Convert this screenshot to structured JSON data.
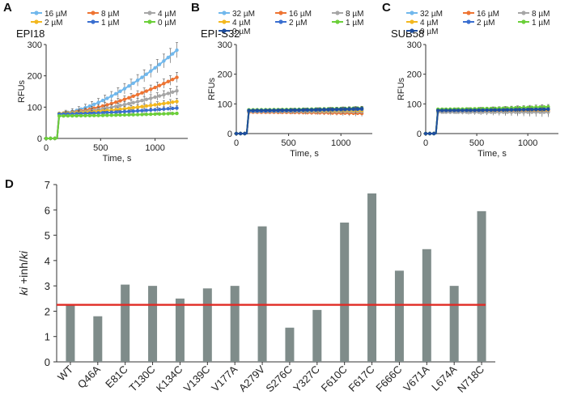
{
  "chart_data": [
    {
      "panel": "A",
      "type": "line",
      "title": "EPI18",
      "xlabel": "Time, s",
      "ylabel": "RFUs",
      "xlim": [
        0,
        1300
      ],
      "ylim": [
        0,
        300
      ],
      "xticks": [
        0,
        500,
        1000
      ],
      "yticks": [
        0,
        100,
        200,
        300
      ],
      "legend_position": "top",
      "series": [
        {
          "name": "16 µM",
          "color": "#71b8ec",
          "baseline": 80,
          "end": 282,
          "err": 24
        },
        {
          "name": "8 µM",
          "color": "#ee7433",
          "baseline": 80,
          "end": 195,
          "err": 16
        },
        {
          "name": "4 µM",
          "color": "#a6a6a6",
          "baseline": 80,
          "end": 152,
          "err": 14
        },
        {
          "name": "2 µM",
          "color": "#f3b81f",
          "baseline": 80,
          "end": 118,
          "err": 10
        },
        {
          "name": "1 µM",
          "color": "#3a6fd0",
          "baseline": 78,
          "end": 97,
          "err": 8
        },
        {
          "name": "0 µM",
          "color": "#6ccf3a",
          "baseline": 72,
          "end": 80,
          "err": 4
        }
      ]
    },
    {
      "panel": "B",
      "type": "line",
      "title": "EPI-S32",
      "xlabel": "Time, s",
      "ylabel": "RFUs",
      "xlim": [
        0,
        1300
      ],
      "ylim": [
        0,
        300
      ],
      "xticks": [
        0,
        500,
        1000
      ],
      "yticks": [
        0,
        100,
        200,
        300
      ],
      "legend_position": "top",
      "series": [
        {
          "name": "32 µM",
          "color": "#71b8ec",
          "baseline": 78,
          "end": 80,
          "err": 8
        },
        {
          "name": "16 µM",
          "color": "#ee7433",
          "baseline": 72,
          "end": 68,
          "err": 10
        },
        {
          "name": "8 µM",
          "color": "#a6a6a6",
          "baseline": 74,
          "end": 74,
          "err": 8
        },
        {
          "name": "4 µM",
          "color": "#f3b81f",
          "baseline": 76,
          "end": 78,
          "err": 6
        },
        {
          "name": "2 µM",
          "color": "#3a6fd0",
          "baseline": 76,
          "end": 82,
          "err": 6
        },
        {
          "name": "1 µM",
          "color": "#6ccf3a",
          "baseline": 80,
          "end": 86,
          "err": 6
        },
        {
          "name": "0 µM",
          "color": "#1f4e9e",
          "baseline": 78,
          "end": 84,
          "err": 6
        }
      ]
    },
    {
      "panel": "C",
      "type": "line",
      "title": "SUB58",
      "xlabel": "Time, s",
      "ylabel": "RFUs",
      "xlim": [
        0,
        1300
      ],
      "ylim": [
        0,
        300
      ],
      "xticks": [
        0,
        500,
        1000
      ],
      "yticks": [
        0,
        100,
        200,
        300
      ],
      "legend_position": "top",
      "series": [
        {
          "name": "32 µM",
          "color": "#71b8ec",
          "baseline": 80,
          "end": 84,
          "err": 10
        },
        {
          "name": "16 µM",
          "color": "#ee7433",
          "baseline": 74,
          "end": 76,
          "err": 14
        },
        {
          "name": "8 µM",
          "color": "#a6a6a6",
          "baseline": 72,
          "end": 72,
          "err": 16
        },
        {
          "name": "4 µM",
          "color": "#f3b81f",
          "baseline": 78,
          "end": 80,
          "err": 8
        },
        {
          "name": "2 µM",
          "color": "#3a6fd0",
          "baseline": 78,
          "end": 82,
          "err": 8
        },
        {
          "name": "1 µM",
          "color": "#6ccf3a",
          "baseline": 82,
          "end": 90,
          "err": 8
        },
        {
          "name": "0 µM",
          "color": "#1f4e9e",
          "baseline": 78,
          "end": 82,
          "err": 6
        }
      ]
    },
    {
      "panel": "D",
      "type": "bar",
      "ylabel_italic_1": "ki",
      "ylabel_mid": " +inh/",
      "ylabel_italic_2": "ki",
      "ylim": [
        0,
        7
      ],
      "yticks": [
        0,
        1,
        2,
        3,
        4,
        5,
        6,
        7
      ],
      "categories": [
        "WT",
        "Q46A",
        "E81C",
        "T130C",
        "K134C",
        "V139C",
        "V177A",
        "A279V",
        "S276C",
        "Y327C",
        "F610C",
        "F617C",
        "F666C",
        "V671A",
        "L674A",
        "N718C"
      ],
      "values": [
        2.25,
        1.8,
        3.05,
        3.0,
        2.5,
        2.9,
        3.0,
        5.35,
        1.35,
        2.05,
        5.5,
        6.65,
        3.6,
        4.45,
        3.0,
        5.95
      ],
      "bar_color": "#7f8c8a",
      "reference_line": {
        "value": 2.25,
        "color": "#e02a24"
      }
    }
  ]
}
